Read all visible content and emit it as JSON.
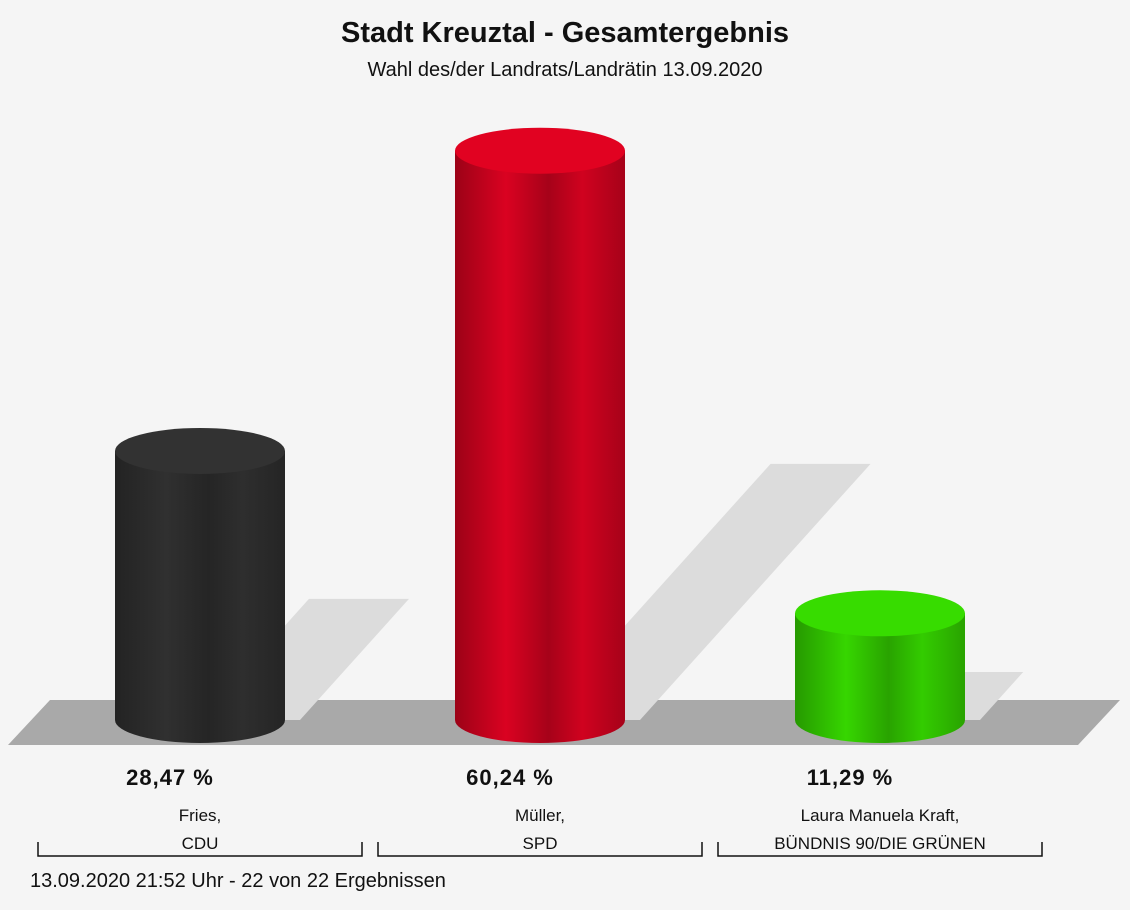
{
  "chart_data": {
    "type": "bar3d",
    "title": "Stadt Kreuztal - Gesamtergebnis",
    "subtitle": "Wahl des/der Landrats/Landrätin 13.09.2020",
    "categories": [
      "Fries,\nCDU",
      "Müller,\nSPD",
      "Laura Manuela Kraft,\nBÜNDNIS 90/DIE GRÜNEN"
    ],
    "values": [
      28.47,
      60.24,
      11.29
    ],
    "value_labels": [
      "28,47 %",
      "60,24 %",
      "11,29 %"
    ],
    "colors": [
      "#2e2e2e",
      "#d0021f",
      "#33cc00"
    ],
    "footnote": "13.09.2020 21:52 Uhr - 22 von 22 Ergebnissen"
  }
}
